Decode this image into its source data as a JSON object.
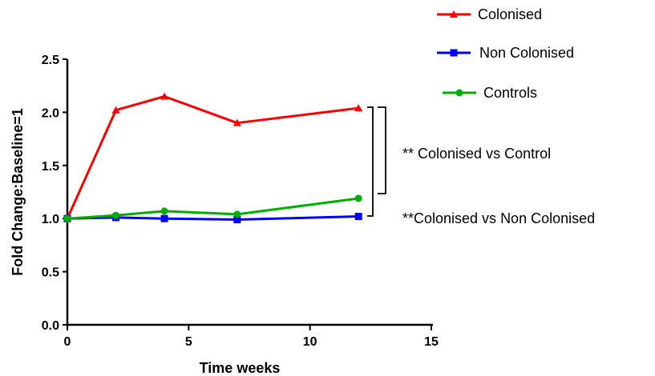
{
  "chart_data": {
    "type": "line",
    "xlabel": "Time weeks",
    "ylabel": "Fold Change:Baseline=1",
    "xlim": [
      0,
      15
    ],
    "ylim": [
      0,
      2.5
    ],
    "x_ticks": [
      "0",
      "5",
      "10",
      "15"
    ],
    "y_ticks": [
      "0.0",
      "0.5",
      "1.0",
      "1.5",
      "2.0",
      "2.5"
    ],
    "grid": false,
    "legend_position": "top-right",
    "series": [
      {
        "name": "Colonised",
        "color": "#ff0000",
        "marker": "triangle",
        "x": [
          0,
          2,
          4,
          7,
          12
        ],
        "y": [
          1.0,
          2.02,
          2.15,
          1.9,
          2.04
        ]
      },
      {
        "name": "Non Colonised",
        "color": "#0000ff",
        "marker": "square",
        "x": [
          0,
          2,
          4,
          7,
          12
        ],
        "y": [
          1.0,
          1.01,
          1.0,
          0.99,
          1.02
        ]
      },
      {
        "name": "Controls",
        "color": "#00b000",
        "marker": "circle",
        "x": [
          0,
          2,
          4,
          7,
          12
        ],
        "y": [
          1.0,
          1.03,
          1.07,
          1.04,
          1.19
        ]
      }
    ],
    "annotations": [
      {
        "text": "** Colonised vs Control"
      },
      {
        "text": "**Colonised vs Non Colonised"
      }
    ]
  }
}
